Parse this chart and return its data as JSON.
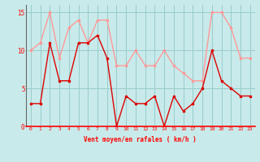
{
  "x": [
    0,
    1,
    2,
    3,
    4,
    5,
    6,
    7,
    8,
    9,
    10,
    11,
    12,
    13,
    14,
    15,
    16,
    17,
    18,
    19,
    20,
    21,
    22,
    23
  ],
  "vent_moyen": [
    3,
    3,
    11,
    6,
    6,
    11,
    11,
    12,
    9,
    0,
    4,
    3,
    3,
    4,
    0,
    4,
    2,
    3,
    5,
    10,
    6,
    5,
    4,
    4
  ],
  "rafales": [
    10,
    11,
    15,
    9,
    13,
    14,
    11,
    14,
    14,
    8,
    8,
    10,
    8,
    8,
    10,
    8,
    7,
    6,
    6,
    15,
    15,
    13,
    9,
    9
  ],
  "bg_color": "#c8eaea",
  "line_color_moyen": "#dd0000",
  "line_color_rafales": "#ff9999",
  "grid_color": "#99cccc",
  "xlabel": "Vent moyen/en rafales ( km/h )",
  "ylim": [
    0,
    16
  ],
  "yticks": [
    0,
    5,
    10,
    15
  ],
  "xticks": [
    0,
    1,
    2,
    3,
    4,
    5,
    6,
    7,
    8,
    9,
    10,
    11,
    12,
    13,
    14,
    15,
    16,
    17,
    18,
    19,
    20,
    21,
    22,
    23
  ]
}
